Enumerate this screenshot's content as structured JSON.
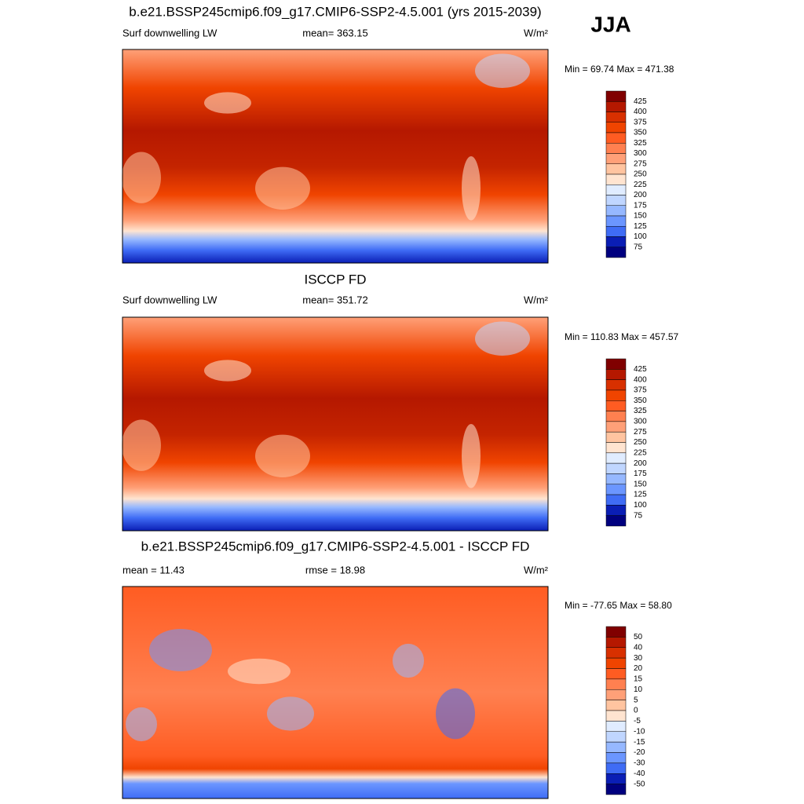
{
  "header": {
    "season": "JJA"
  },
  "panels": [
    {
      "title": "b.e21.BSSP245cmip6.f09_g17.CMIP6-SSP2-4.5.001 (yrs 2015-2039)",
      "left": "Surf downwelling LW",
      "center": "mean= 363.15",
      "units": "W/m²",
      "stats": "Min =  69.74 Max = 471.38",
      "colorbar": {
        "labels": [
          "425",
          "400",
          "375",
          "350",
          "325",
          "300",
          "275",
          "250",
          "225",
          "200",
          "175",
          "150",
          "125",
          "100",
          "75"
        ],
        "colors": [
          "#800000",
          "#b51800",
          "#d83000",
          "#f04400",
          "#ff5c22",
          "#ff8050",
          "#ffa078",
          "#ffc4a0",
          "#ffe4d0",
          "#e0ecff",
          "#c0d6ff",
          "#96b8ff",
          "#6b96ff",
          "#3f6cf5",
          "#0a1eb5",
          "#00007f"
        ]
      }
    },
    {
      "title": "ISCCP FD",
      "left": "Surf downwelling LW",
      "center": "mean= 351.72",
      "units": "W/m²",
      "stats": "Min = 110.83 Max = 457.57",
      "colorbar": {
        "labels": [
          "425",
          "400",
          "375",
          "350",
          "325",
          "300",
          "275",
          "250",
          "225",
          "200",
          "175",
          "150",
          "125",
          "100",
          "75"
        ],
        "colors": [
          "#800000",
          "#b51800",
          "#d83000",
          "#f04400",
          "#ff5c22",
          "#ff8050",
          "#ffa078",
          "#ffc4a0",
          "#ffe4d0",
          "#e0ecff",
          "#c0d6ff",
          "#96b8ff",
          "#6b96ff",
          "#3f6cf5",
          "#0a1eb5",
          "#00007f"
        ]
      }
    },
    {
      "title": "b.e21.BSSP245cmip6.f09_g17.CMIP6-SSP2-4.5.001 - ISCCP FD",
      "left": "mean =  11.43",
      "center": "rmse =  18.98",
      "units": "W/m²",
      "stats": "Min = -77.65 Max =  58.80",
      "colorbar": {
        "labels": [
          "50",
          "40",
          "30",
          "20",
          "15",
          "10",
          "5",
          "0",
          "-5",
          "-10",
          "-15",
          "-20",
          "-30",
          "-40",
          "-50"
        ],
        "colors": [
          "#800000",
          "#b51800",
          "#d83000",
          "#f04400",
          "#ff5c22",
          "#ff8050",
          "#ffa078",
          "#ffc4a0",
          "#ffe4d0",
          "#e0ecff",
          "#c0d6ff",
          "#96b8ff",
          "#6b96ff",
          "#3f6cf5",
          "#0a1eb5",
          "#00007f"
        ]
      }
    }
  ]
}
